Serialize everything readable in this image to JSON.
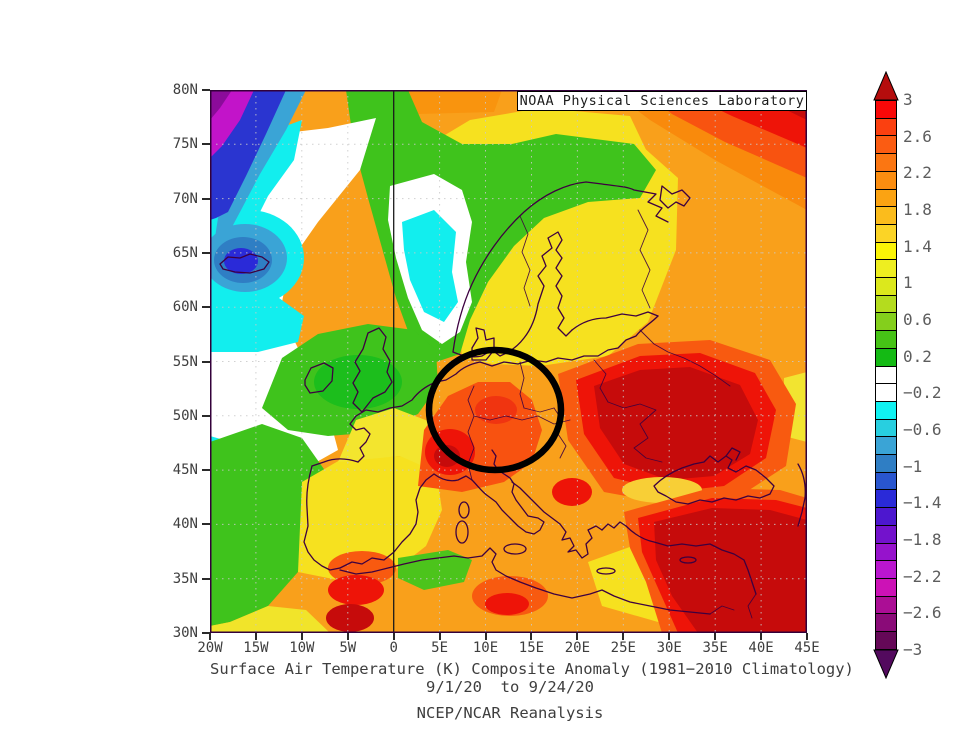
{
  "header": {
    "title_box": "NOAA Physical Sciences Laboratory"
  },
  "captions": {
    "line1": "Surface Air Temperature (K) Composite Anomaly (1981−2010 Climatology)",
    "line2": "9/1/20  to 9/24/20",
    "line3": "NCEP/NCAR Reanalysis"
  },
  "axes": {
    "lat_labels": [
      "80N",
      "75N",
      "70N",
      "65N",
      "60N",
      "55N",
      "50N",
      "45N",
      "40N",
      "35N",
      "30N"
    ],
    "lon_labels": [
      "20W",
      "15W",
      "10W",
      "5W",
      "0",
      "5E",
      "10E",
      "15E",
      "20E",
      "25E",
      "30E",
      "35E",
      "40E",
      "45E"
    ]
  },
  "colorbar": {
    "tick_labels": [
      "3",
      "2.6",
      "2.2",
      "1.8",
      "1.4",
      "1",
      "0.6",
      "0.2",
      "−0.2",
      "−0.6",
      "−1",
      "−1.4",
      "−1.8",
      "−2.2",
      "−2.6",
      "−3"
    ],
    "segment_colors": [
      "#f90808",
      "#fb4010",
      "#fb5c12",
      "#fb7612",
      "#fb8d10",
      "#fba312",
      "#fbbc1c",
      "#fbd426",
      "#fbf406",
      "#eeee20",
      "#dce81c",
      "#b4dc1e",
      "#84cf1c",
      "#46c316",
      "#14ba14",
      "#ffffff",
      "#ffffff",
      "#10f2f2",
      "#28cfe0",
      "#3aa4d6",
      "#2f7ec4",
      "#2956cf",
      "#2a2ad8",
      "#4d17cf",
      "#7312cc",
      "#9613cc",
      "#ba16cf",
      "#cc12b6",
      "#ab0e95",
      "#8a0b78",
      "#650857"
    ],
    "arrow_top_color": "#b50d0d",
    "arrow_bottom_color": "#530a5e",
    "range_top": "3",
    "range_bottom": "−3"
  },
  "annotation": {
    "shape": "circle",
    "color": "#000000"
  },
  "palette": {
    "frame": "#33003a",
    "coastline": "#3d0040",
    "grid": "#c9c9c9",
    "prime_meridian": "#1a1a1a"
  }
}
